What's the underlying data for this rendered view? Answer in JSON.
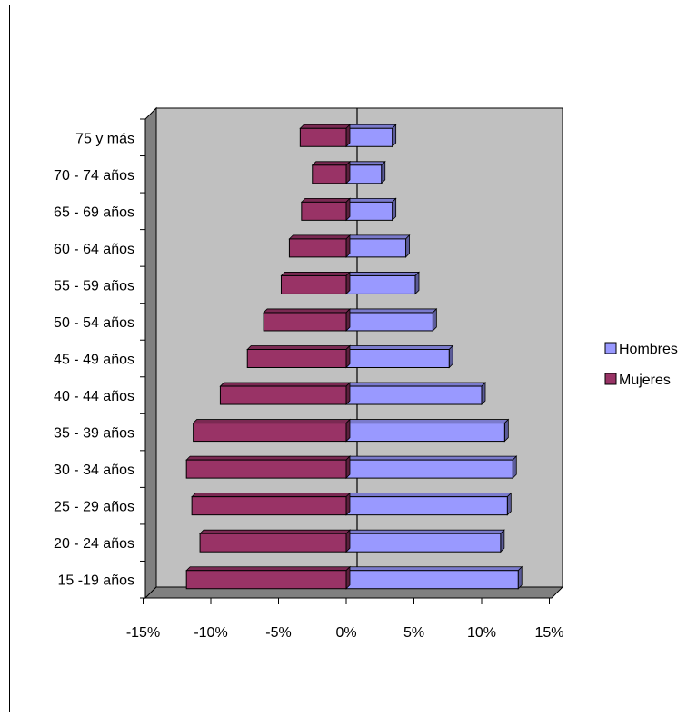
{
  "chart_data": {
    "type": "bar",
    "orientation": "horizontal",
    "stacked": "diverging",
    "categories": [
      "15 -19 años",
      "20 - 24 años",
      "25 - 29 años",
      "30 - 34 años",
      "35 - 39 años",
      "40 - 44 años",
      "45 - 49 años",
      "50 - 54 años",
      "55 - 59 años",
      "60 - 64 años",
      "65 - 69 años",
      "70 - 74 años",
      "75 y más"
    ],
    "series": [
      {
        "name": "Hombres",
        "color": "#9999ff",
        "values": [
          12.7,
          11.4,
          11.9,
          12.3,
          11.7,
          10.0,
          7.6,
          6.4,
          5.1,
          4.4,
          3.4,
          2.6,
          3.4
        ]
      },
      {
        "name": "Mujeres",
        "color": "#993366",
        "values": [
          -11.8,
          -10.8,
          -11.4,
          -11.8,
          -11.3,
          -9.3,
          -7.3,
          -6.1,
          -4.8,
          -4.2,
          -3.3,
          -2.5,
          -3.4
        ]
      }
    ],
    "xlim": [
      -15,
      15
    ],
    "xticks": [
      "-15%",
      "-10%",
      "-5%",
      "0%",
      "5%",
      "10%",
      "15%"
    ],
    "xtick_values": [
      -15,
      -10,
      -5,
      0,
      5,
      10,
      15
    ],
    "plot_background": "#c0c0c0",
    "legend_position": "right",
    "grid": false
  }
}
